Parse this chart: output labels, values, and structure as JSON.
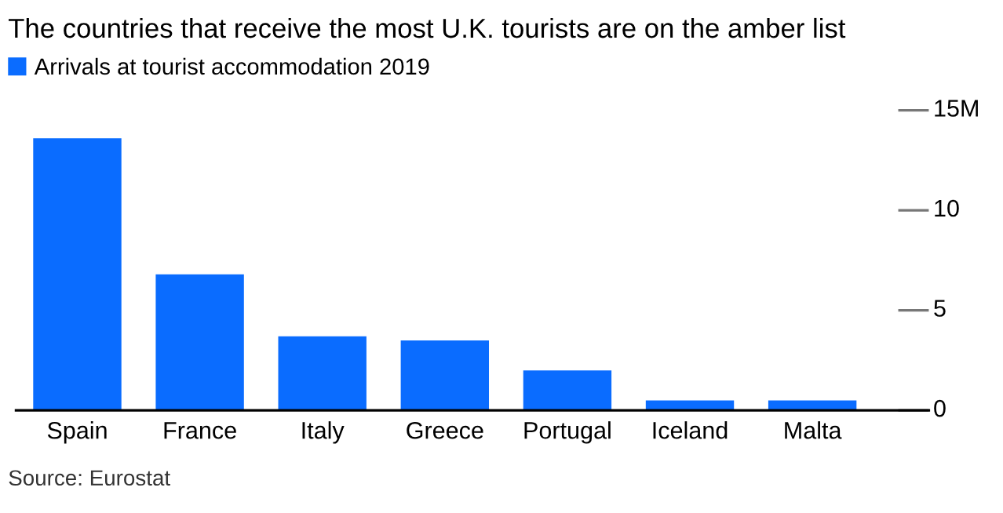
{
  "chart_data": {
    "type": "bar",
    "title": "The countries that receive the most U.K. tourists are on the amber list",
    "categories": [
      "Spain",
      "France",
      "Italy",
      "Greece",
      "Portugal",
      "Iceland",
      "Malta"
    ],
    "series": [
      {
        "name": "Arrivals at tourist accommodation 2019",
        "color": "#0a6cff",
        "values": [
          13.6,
          6.8,
          3.7,
          3.5,
          2.0,
          0.5,
          0.5
        ]
      }
    ],
    "ylim": [
      0,
      15
    ],
    "yticks": [
      0,
      5,
      10,
      {
        "value": 15,
        "label": "15M"
      }
    ],
    "grid": false,
    "legend": "top left",
    "annotations": [
      "Source: Eurostat"
    ]
  }
}
